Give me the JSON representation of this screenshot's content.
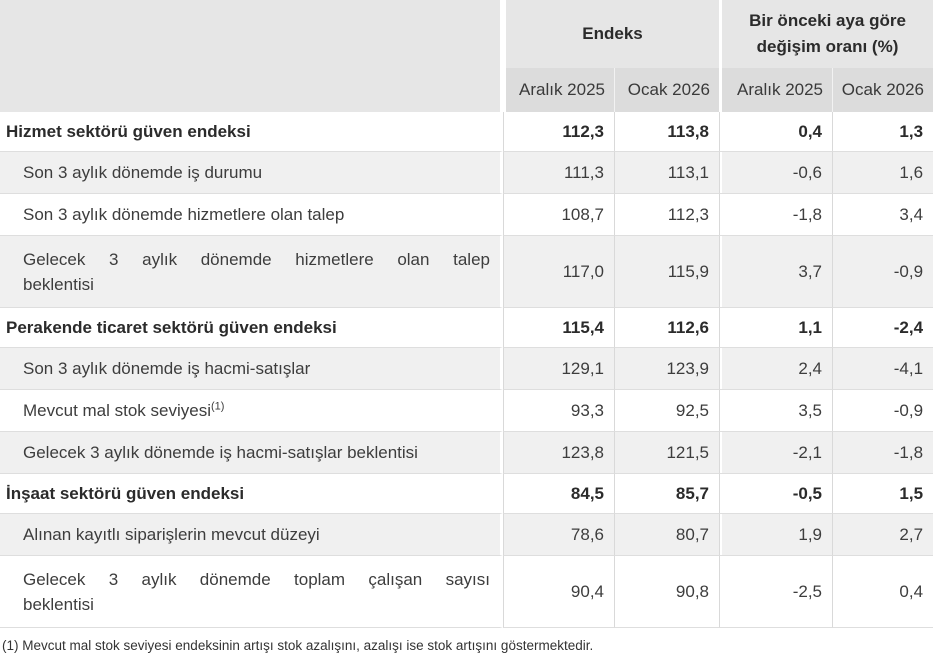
{
  "colors": {
    "group_header_bg": "#e6e6e6",
    "column_header_bg": "#dcdcdc",
    "alt_row_bg": "#f0f0f0",
    "grid_line": "#d9d9d9",
    "text": "#3a3a3a",
    "bold_text": "#2b2b2b"
  },
  "table": {
    "group_headers": [
      {
        "label": "Endeks"
      },
      {
        "label": "Bir önceki aya göre değişim oranı (%)"
      }
    ],
    "column_headers": [
      "Aralık 2025",
      "Ocak 2026",
      "Aralık 2025",
      "Ocak 2026"
    ],
    "rows": [
      {
        "label": "Hizmet sektörü güven endeksi",
        "bold": true,
        "values": [
          "112,3",
          "113,8",
          "0,4",
          "1,3"
        ]
      },
      {
        "label": "Son 3 aylık dönemde iş durumu",
        "values": [
          "111,3",
          "113,1",
          "-0,6",
          "1,6"
        ]
      },
      {
        "label": "Son 3 aylık dönemde hizmetlere olan talep",
        "values": [
          "108,7",
          "112,3",
          "-1,8",
          "3,4"
        ]
      },
      {
        "label": "Gelecek 3 aylık dönemde hizmetlere olan talep beklentisi",
        "label_lines": [
          "Gelecek 3 aylık dönemde hizmetlere olan talep",
          "beklentisi"
        ],
        "values": [
          "117,0",
          "115,9",
          "3,7",
          "-0,9"
        ]
      },
      {
        "label": "Perakende ticaret sektörü güven endeksi",
        "bold": true,
        "values": [
          "115,4",
          "112,6",
          "1,1",
          "-2,4"
        ]
      },
      {
        "label": "Son 3 aylık dönemde iş hacmi-satışlar",
        "values": [
          "129,1",
          "123,9",
          "2,4",
          "-4,1"
        ]
      },
      {
        "label": "Mevcut mal stok seviyesi",
        "label_sup": "(1)",
        "values": [
          "93,3",
          "92,5",
          "3,5",
          "-0,9"
        ]
      },
      {
        "label": "Gelecek 3 aylık dönemde iş hacmi-satışlar beklentisi",
        "values": [
          "123,8",
          "121,5",
          "-2,1",
          "-1,8"
        ]
      },
      {
        "label": "İnşaat sektörü güven endeksi",
        "bold": true,
        "values": [
          "84,5",
          "85,7",
          "-0,5",
          "1,5"
        ]
      },
      {
        "label": "Alınan kayıtlı siparişlerin mevcut düzeyi",
        "values": [
          "78,6",
          "80,7",
          "1,9",
          "2,7"
        ]
      },
      {
        "label": "Gelecek 3 aylık dönemde toplam çalışan sayısı beklentisi",
        "label_lines": [
          "Gelecek 3 aylık dönemde toplam çalışan sayısı",
          "beklentisi"
        ],
        "values": [
          "90,4",
          "90,8",
          "-2,5",
          "0,4"
        ]
      }
    ],
    "footnote": "(1) Mevcut mal stok seviyesi endeksinin artışı stok azalışını, azalışı ise stok artışını göstermektedir."
  },
  "chart_data": {
    "type": "table",
    "title": "",
    "column_groups": [
      {
        "label": "Endeks",
        "columns": [
          "Aralık 2025",
          "Ocak 2026"
        ]
      },
      {
        "label": "Bir önceki aya göre değişim oranı (%)",
        "columns": [
          "Aralık 2025",
          "Ocak 2026"
        ]
      }
    ],
    "rows": [
      {
        "label": "Hizmet sektörü güven endeksi",
        "section": true,
        "values": [
          112.3,
          113.8,
          0.4,
          1.3
        ]
      },
      {
        "label": "Son 3 aylık dönemde iş durumu",
        "section": false,
        "values": [
          111.3,
          113.1,
          -0.6,
          1.6
        ]
      },
      {
        "label": "Son 3 aylık dönemde hizmetlere olan talep",
        "section": false,
        "values": [
          108.7,
          112.3,
          -1.8,
          3.4
        ]
      },
      {
        "label": "Gelecek 3 aylık dönemde hizmetlere olan talep beklentisi",
        "section": false,
        "values": [
          117.0,
          115.9,
          3.7,
          -0.9
        ]
      },
      {
        "label": "Perakende ticaret sektörü güven endeksi",
        "section": true,
        "values": [
          115.4,
          112.6,
          1.1,
          -2.4
        ]
      },
      {
        "label": "Son 3 aylık dönemde iş hacmi-satışlar",
        "section": false,
        "values": [
          129.1,
          123.9,
          2.4,
          -4.1
        ]
      },
      {
        "label": "Mevcut mal stok seviyesi (1)",
        "section": false,
        "values": [
          93.3,
          92.5,
          3.5,
          -0.9
        ]
      },
      {
        "label": "Gelecek 3 aylık dönemde iş hacmi-satışlar beklentisi",
        "section": false,
        "values": [
          123.8,
          121.5,
          -2.1,
          -1.8
        ]
      },
      {
        "label": "İnşaat sektörü güven endeksi",
        "section": true,
        "values": [
          84.5,
          85.7,
          -0.5,
          1.5
        ]
      },
      {
        "label": "Alınan kayıtlı siparişlerin mevcut düzeyi",
        "section": false,
        "values": [
          78.6,
          80.7,
          1.9,
          2.7
        ]
      },
      {
        "label": "Gelecek 3 aylık dönemde toplam çalışan sayısı beklentisi",
        "section": false,
        "values": [
          90.4,
          90.8,
          -2.5,
          0.4
        ]
      }
    ],
    "footnote": "(1) Mevcut mal stok seviyesi endeksinin artışı stok azalışını, azalışı ise stok artışını göstermektedir."
  }
}
